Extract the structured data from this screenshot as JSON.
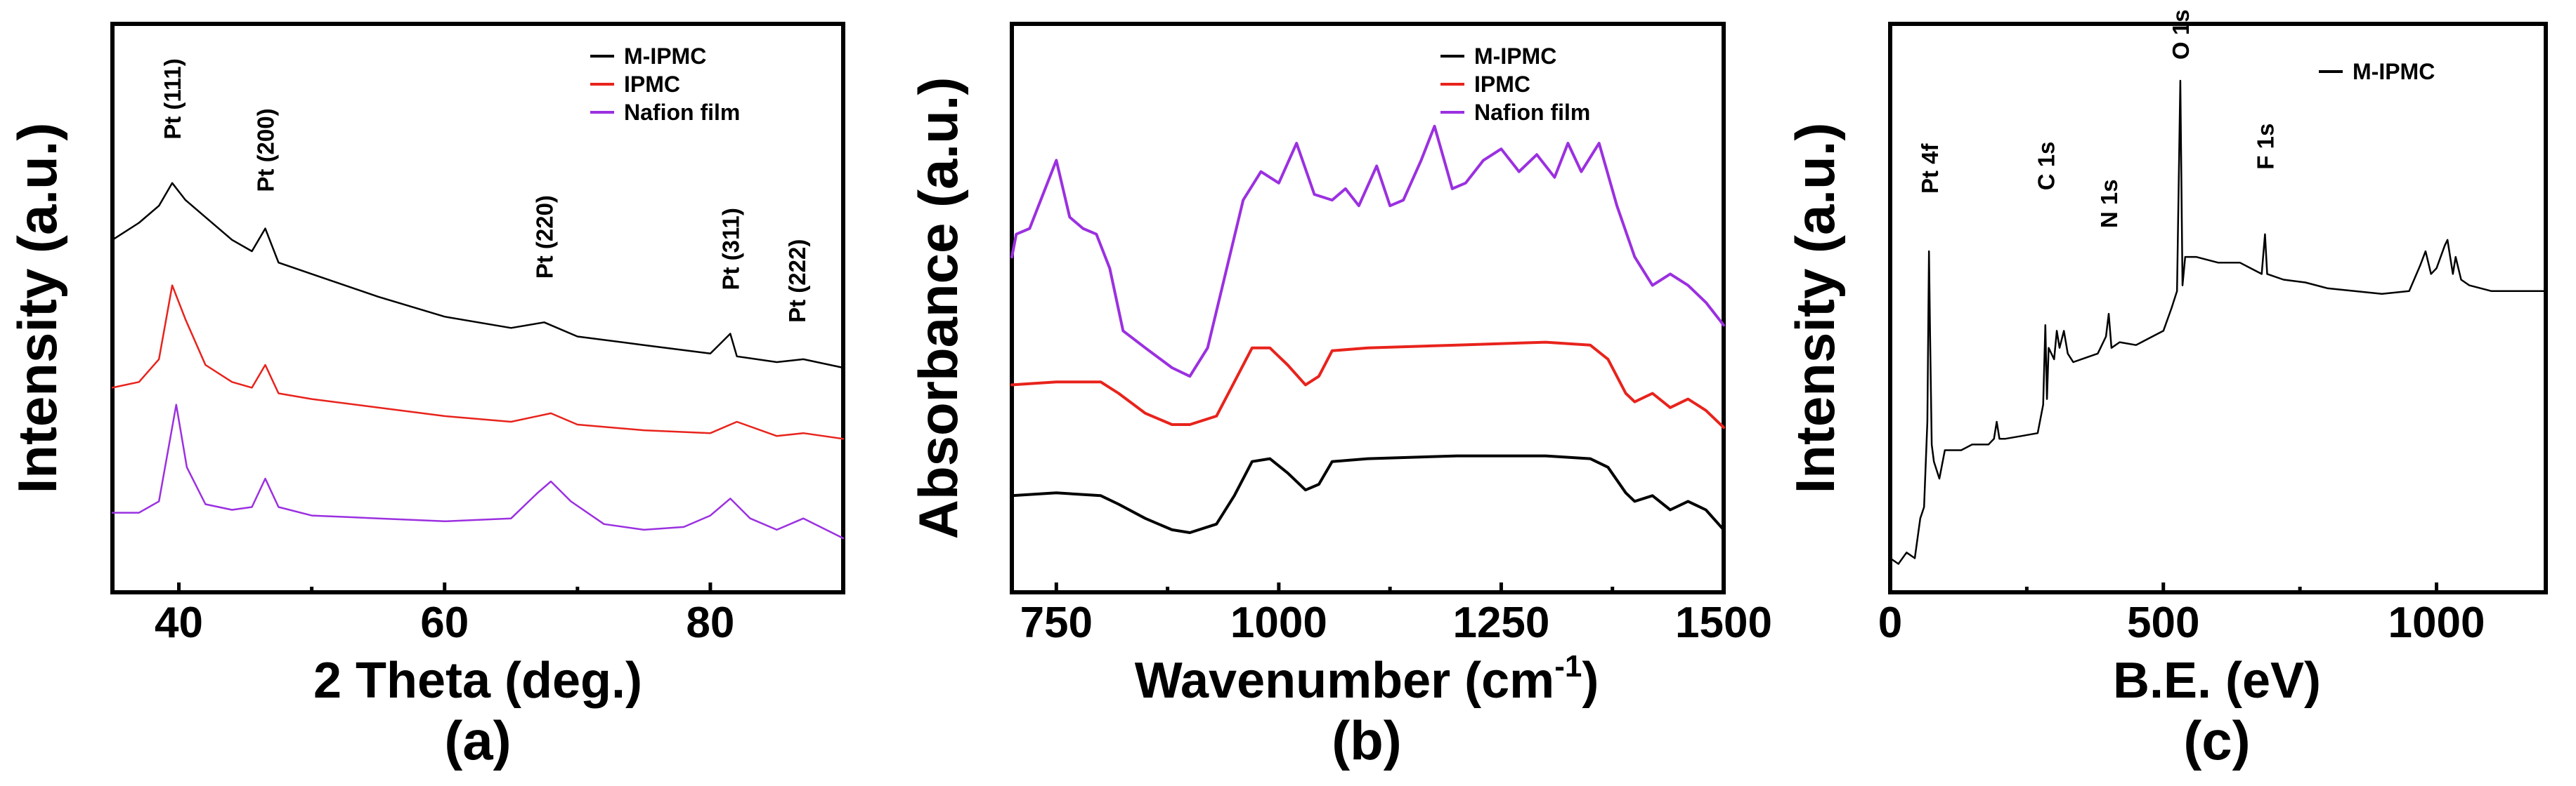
{
  "colors": {
    "black": "#000000",
    "red": "#e8231c",
    "purple": "#9b30e0"
  },
  "chart_data": [
    {
      "id": "a",
      "type": "line",
      "panel_label": "(a)",
      "xlabel": "2 Theta (deg.)",
      "ylabel": "Intensity (a.u.)",
      "xlim": [
        35,
        90
      ],
      "ylim": [
        0,
        10
      ],
      "xticks": [
        40,
        60,
        80
      ],
      "xtick_labels": [
        "40",
        "60",
        "80"
      ],
      "legend": {
        "position": "top-right",
        "entries": [
          "M-IPMC",
          "IPMC",
          "Nafion film"
        ]
      },
      "annotations": [
        {
          "text": "Pt (111)",
          "x": 39.5
        },
        {
          "text": "Pt (200)",
          "x": 46.5
        },
        {
          "text": "Pt (220)",
          "x": 67.5
        },
        {
          "text": "Pt (311)",
          "x": 81.5
        },
        {
          "text": "Pt (222)",
          "x": 86.5
        }
      ],
      "series": [
        {
          "name": "M-IPMC",
          "color": "#000000",
          "x": [
            35,
            37,
            38.5,
            39.5,
            40.5,
            42,
            44,
            45.5,
            46.5,
            47.5,
            50,
            55,
            60,
            65,
            67.5,
            70,
            75,
            80,
            81.5,
            82,
            85,
            87,
            90
          ],
          "y": [
            6.2,
            6.5,
            6.8,
            7.2,
            6.9,
            6.6,
            6.2,
            6.0,
            6.4,
            5.8,
            5.6,
            5.2,
            4.85,
            4.65,
            4.75,
            4.5,
            4.35,
            4.2,
            4.55,
            4.15,
            4.05,
            4.1,
            3.95
          ]
        },
        {
          "name": "IPMC",
          "color": "#e8231c",
          "x": [
            35,
            37,
            38.5,
            39.5,
            40.5,
            42,
            44,
            45.5,
            46.5,
            47.5,
            50,
            55,
            60,
            65,
            68,
            70,
            75,
            80,
            82,
            85,
            87,
            90
          ],
          "y": [
            3.6,
            3.7,
            4.1,
            5.4,
            4.8,
            4.0,
            3.7,
            3.6,
            4.0,
            3.5,
            3.4,
            3.25,
            3.1,
            3.0,
            3.15,
            2.95,
            2.85,
            2.8,
            3.0,
            2.75,
            2.8,
            2.7
          ]
        },
        {
          "name": "Nafion film",
          "color": "#9b30e0",
          "x": [
            35,
            37,
            38.5,
            39.8,
            40.6,
            42,
            44,
            45.5,
            46.5,
            47.5,
            50,
            55,
            60,
            65,
            67,
            68,
            69.5,
            72,
            75,
            78,
            80,
            81.5,
            83,
            85,
            87,
            90
          ],
          "y": [
            1.4,
            1.4,
            1.6,
            3.3,
            2.2,
            1.55,
            1.45,
            1.5,
            2.0,
            1.5,
            1.35,
            1.3,
            1.25,
            1.3,
            1.75,
            1.95,
            1.6,
            1.2,
            1.1,
            1.15,
            1.35,
            1.65,
            1.3,
            1.1,
            1.3,
            0.95
          ]
        }
      ]
    },
    {
      "id": "b",
      "type": "line",
      "panel_label": "(b)",
      "xlabel": "Wavenumber (cm",
      "xlabel_superscript": "-1",
      "xlabel_suffix": ")",
      "ylabel": "Absorbance (a.u.)",
      "xlim": [
        700,
        1500
      ],
      "ylim": [
        0,
        10
      ],
      "xticks": [
        750,
        1000,
        1250,
        1500
      ],
      "xtick_labels": [
        "750",
        "1000",
        "1250",
        "1500"
      ],
      "legend": {
        "position": "top-right",
        "entries": [
          "M-IPMC",
          "IPMC",
          "Nafion film"
        ]
      },
      "series": [
        {
          "name": "M-IPMC",
          "color": "#000000",
          "x": [
            700,
            750,
            800,
            820,
            850,
            880,
            900,
            930,
            950,
            970,
            990,
            1010,
            1030,
            1045,
            1060,
            1100,
            1200,
            1300,
            1350,
            1370,
            1390,
            1400,
            1420,
            1440,
            1460,
            1480,
            1500
          ],
          "y": [
            1.7,
            1.75,
            1.7,
            1.55,
            1.3,
            1.1,
            1.05,
            1.2,
            1.7,
            2.3,
            2.35,
            2.1,
            1.8,
            1.9,
            2.3,
            2.35,
            2.4,
            2.4,
            2.35,
            2.2,
            1.75,
            1.6,
            1.7,
            1.45,
            1.6,
            1.45,
            1.1
          ]
        },
        {
          "name": "IPMC",
          "color": "#e8231c",
          "x": [
            700,
            750,
            800,
            820,
            850,
            880,
            900,
            930,
            950,
            970,
            990,
            1010,
            1030,
            1045,
            1060,
            1100,
            1200,
            1300,
            1350,
            1370,
            1390,
            1400,
            1420,
            1440,
            1460,
            1480,
            1500
          ],
          "y": [
            3.65,
            3.7,
            3.7,
            3.5,
            3.15,
            2.95,
            2.95,
            3.1,
            3.7,
            4.3,
            4.3,
            4.0,
            3.65,
            3.8,
            4.25,
            4.3,
            4.35,
            4.4,
            4.35,
            4.1,
            3.5,
            3.35,
            3.5,
            3.25,
            3.4,
            3.2,
            2.9
          ]
        },
        {
          "name": "Nafion film",
          "color": "#9b30e0",
          "x": [
            700,
            705,
            720,
            735,
            750,
            765,
            780,
            795,
            810,
            825,
            850,
            880,
            900,
            920,
            940,
            960,
            980,
            1000,
            1020,
            1040,
            1060,
            1075,
            1090,
            1110,
            1125,
            1140,
            1160,
            1175,
            1195,
            1210,
            1230,
            1250,
            1270,
            1290,
            1310,
            1325,
            1340,
            1360,
            1380,
            1400,
            1420,
            1440,
            1460,
            1480,
            1500
          ],
          "y": [
            5.9,
            6.3,
            6.4,
            7.0,
            7.6,
            6.6,
            6.4,
            6.3,
            5.7,
            4.6,
            4.3,
            3.95,
            3.8,
            4.3,
            5.6,
            6.9,
            7.4,
            7.2,
            7.9,
            7.0,
            6.9,
            7.1,
            6.8,
            7.5,
            6.8,
            6.9,
            7.6,
            8.2,
            7.1,
            7.2,
            7.6,
            7.8,
            7.4,
            7.7,
            7.3,
            7.9,
            7.4,
            7.9,
            6.8,
            5.9,
            5.4,
            5.6,
            5.4,
            5.1,
            4.7
          ]
        }
      ]
    },
    {
      "id": "c",
      "type": "line",
      "panel_label": "(c)",
      "xlabel": "B.E. (eV)",
      "ylabel": "Intensity (a.u.)",
      "xlim": [
        0,
        1200
      ],
      "ylim": [
        0,
        10
      ],
      "xticks": [
        0,
        500,
        1000
      ],
      "xtick_labels": [
        "0",
        "500",
        "1000"
      ],
      "legend": {
        "position": "top-right",
        "entries": [
          "M-IPMC"
        ]
      },
      "annotations": [
        {
          "text": "Pt 4f",
          "x": 72
        },
        {
          "text": "C 1s",
          "x": 285
        },
        {
          "text": "N 1s",
          "x": 400
        },
        {
          "text": "O 1s",
          "x": 531
        },
        {
          "text": "F 1s",
          "x": 686
        }
      ],
      "series": [
        {
          "name": "M-IPMC",
          "color": "#000000",
          "x": [
            0,
            15,
            30,
            45,
            55,
            62,
            68,
            71,
            73,
            76,
            80,
            90,
            100,
            130,
            150,
            180,
            190,
            195,
            200,
            210,
            240,
            270,
            280,
            284,
            287,
            290,
            300,
            305,
            310,
            318,
            325,
            335,
            350,
            380,
            395,
            400,
            405,
            420,
            450,
            480,
            500,
            515,
            525,
            531,
            535,
            540,
            560,
            600,
            640,
            680,
            686,
            690,
            720,
            760,
            800,
            850,
            900,
            950,
            970,
            980,
            990,
            1000,
            1015,
            1020,
            1030,
            1035,
            1045,
            1060,
            1100,
            1150,
            1200
          ],
          "y": [
            0.6,
            0.5,
            0.7,
            0.6,
            1.3,
            1.5,
            3.0,
            6.0,
            4.5,
            2.6,
            2.3,
            2.0,
            2.5,
            2.5,
            2.6,
            2.6,
            2.7,
            3.0,
            2.7,
            2.7,
            2.75,
            2.8,
            3.3,
            4.7,
            3.4,
            4.3,
            4.1,
            4.6,
            4.3,
            4.6,
            4.2,
            4.05,
            4.1,
            4.2,
            4.5,
            4.9,
            4.3,
            4.4,
            4.35,
            4.5,
            4.6,
            5.0,
            5.3,
            9.0,
            5.4,
            5.9,
            5.9,
            5.8,
            5.8,
            5.6,
            6.3,
            5.6,
            5.5,
            5.45,
            5.35,
            5.3,
            5.25,
            5.3,
            5.75,
            6.0,
            5.6,
            5.7,
            6.1,
            6.2,
            5.6,
            5.9,
            5.5,
            5.4,
            5.3,
            5.3,
            5.3
          ]
        }
      ]
    }
  ]
}
